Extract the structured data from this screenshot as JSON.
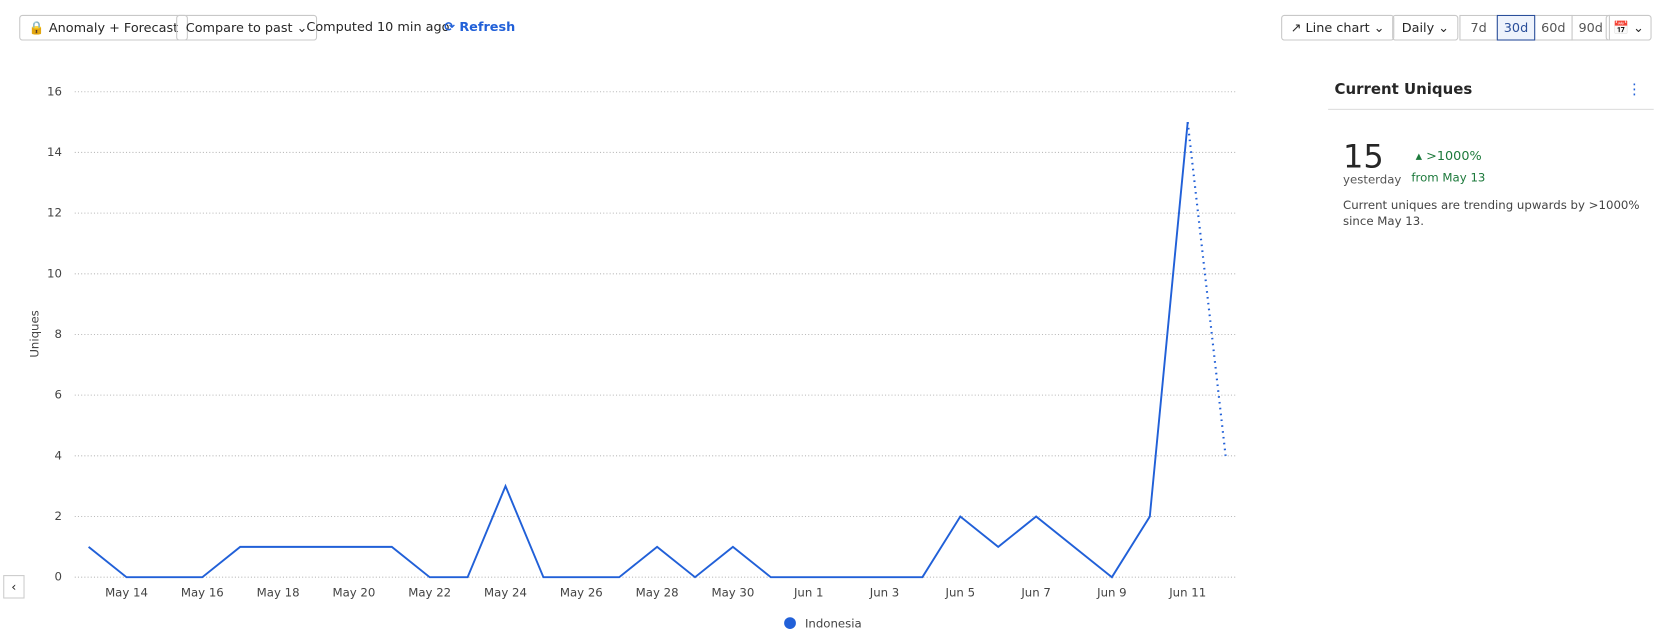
{
  "toolbar": {
    "anomaly": "Anomaly + Forecast",
    "compare": "Compare to past",
    "computed": "Computed 10 min ago",
    "refresh": "Refresh",
    "chart_type": "Line chart",
    "interval": "Daily",
    "ranges": [
      "7d",
      "30d",
      "60d",
      "90d"
    ],
    "selected_range": 1
  },
  "chart_data": {
    "type": "line",
    "y_label": "Uniques",
    "categories": [
      null,
      "May 14",
      null,
      "May 16",
      null,
      "May 18",
      null,
      "May 20",
      null,
      "May 22",
      null,
      "May 24",
      null,
      "May 26",
      null,
      "May 28",
      null,
      "May 30",
      null,
      "Jun 1",
      null,
      "Jun 3",
      null,
      "Jun 5",
      null,
      "Jun 7",
      null,
      "Jun 9",
      null,
      "Jun 11",
      null
    ],
    "series": [
      {
        "name": "Indonesia",
        "color": "#2160d8",
        "dash": false,
        "values": [
          1,
          0,
          0,
          0,
          1,
          1,
          1,
          1,
          1,
          0,
          0,
          3,
          0,
          0,
          0,
          1,
          0,
          1,
          0,
          0,
          0,
          0,
          0,
          2,
          1,
          2,
          1,
          0,
          2,
          15,
          null
        ]
      },
      {
        "color": "#2160d8",
        "dash": true,
        "values": [
          null,
          null,
          null,
          null,
          null,
          null,
          null,
          null,
          null,
          null,
          null,
          null,
          null,
          null,
          null,
          null,
          null,
          null,
          null,
          null,
          null,
          null,
          null,
          null,
          null,
          null,
          null,
          null,
          null,
          15,
          4
        ]
      }
    ],
    "ylim": [
      0,
      16
    ],
    "yticks": [
      0,
      2,
      4,
      6,
      8,
      10,
      12,
      14,
      16
    ],
    "grid": true
  },
  "panel": {
    "title": "Current Uniques",
    "value": "15",
    "value_caption": "yesterday",
    "change": ">1000%",
    "change_caption": "from May 13",
    "description": "Current uniques are trending upwards by >1000% since May 13."
  }
}
